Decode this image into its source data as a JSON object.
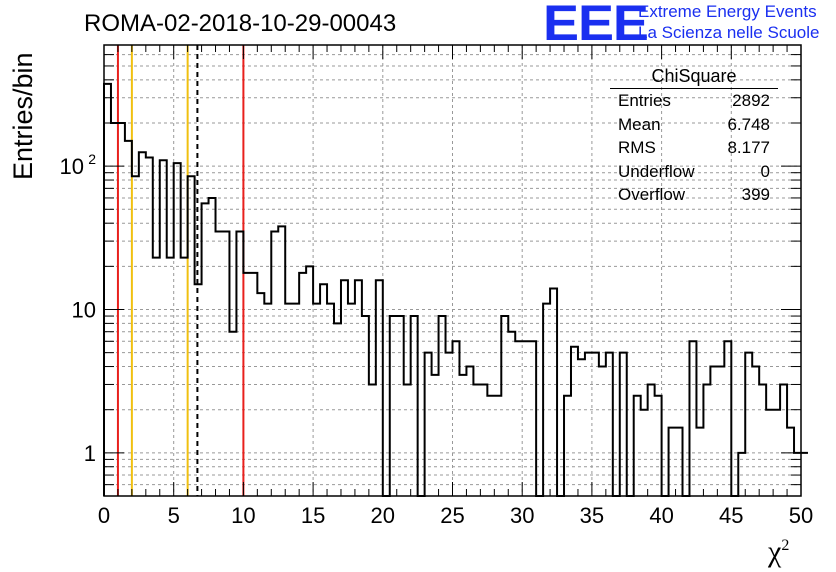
{
  "header": {
    "run_title": "ROMA-02-2018-10-29-00043"
  },
  "logo": {
    "mark": "EEE",
    "line1": "Extreme Energy Events",
    "line2": "La Scienza nelle Scuole",
    "color": "#1a2ff0"
  },
  "stats_box": {
    "title": "ChiSquare",
    "rows": [
      {
        "label": "Entries",
        "value": "2892"
      },
      {
        "label": "Mean",
        "value": "6.748"
      },
      {
        "label": "RMS",
        "value": "8.177"
      },
      {
        "label": "Underflow",
        "value": "0"
      },
      {
        "label": "Overflow",
        "value": "399"
      }
    ]
  },
  "chart_data": {
    "type": "histogram",
    "title": "ROMA-02-2018-10-29-00043",
    "xlabel": "χ",
    "xlabel_sup": "2",
    "ylabel": "Entries/bin",
    "xlim": [
      0,
      50
    ],
    "ylim": [
      0.5,
      700
    ],
    "y_scale": "log",
    "grid": true,
    "bin_width": 0.5,
    "x_ticks": [
      0,
      5,
      10,
      15,
      20,
      25,
      30,
      35,
      40,
      45,
      50
    ],
    "y_tick_labels": [
      {
        "value": 1,
        "label": "1"
      },
      {
        "value": 10,
        "label": "10"
      },
      {
        "value": 100,
        "label": "10",
        "sup": "2"
      }
    ],
    "bin_counts": [
      375,
      200,
      200,
      150,
      85,
      125,
      115,
      23,
      110,
      23,
      105,
      23,
      85,
      15,
      55,
      60,
      35,
      35,
      7,
      35,
      18,
      18,
      13,
      11,
      35,
      38,
      11,
      11,
      18,
      20,
      11,
      15,
      11,
      8,
      16,
      11,
      16,
      9,
      3,
      16,
      0,
      9,
      9,
      3,
      9,
      0.5,
      5,
      3.5,
      9,
      5,
      6,
      3.5,
      4,
      3,
      3,
      2.5,
      2.5,
      9,
      7,
      6,
      6,
      6,
      0.5,
      11,
      14,
      0.5,
      2.5,
      5.5,
      4.5,
      5,
      5,
      4,
      5,
      0.5,
      5,
      0.5,
      2.5,
      2,
      3,
      2.5,
      0.5,
      1.5,
      1.5,
      0.5,
      6,
      1.5,
      3,
      4,
      4,
      6,
      0.5,
      1,
      5,
      4,
      3,
      2,
      2,
      3,
      1.5,
      1,
      1
    ],
    "reference_lines": [
      {
        "x": 1,
        "color": "#e8201c",
        "style": "solid"
      },
      {
        "x": 2,
        "color": "#f0c010",
        "style": "solid"
      },
      {
        "x": 6,
        "color": "#f0c010",
        "style": "solid"
      },
      {
        "x": 6.7,
        "color": "#000000",
        "style": "dashed"
      },
      {
        "x": 10,
        "color": "#e8201c",
        "style": "solid"
      }
    ]
  }
}
